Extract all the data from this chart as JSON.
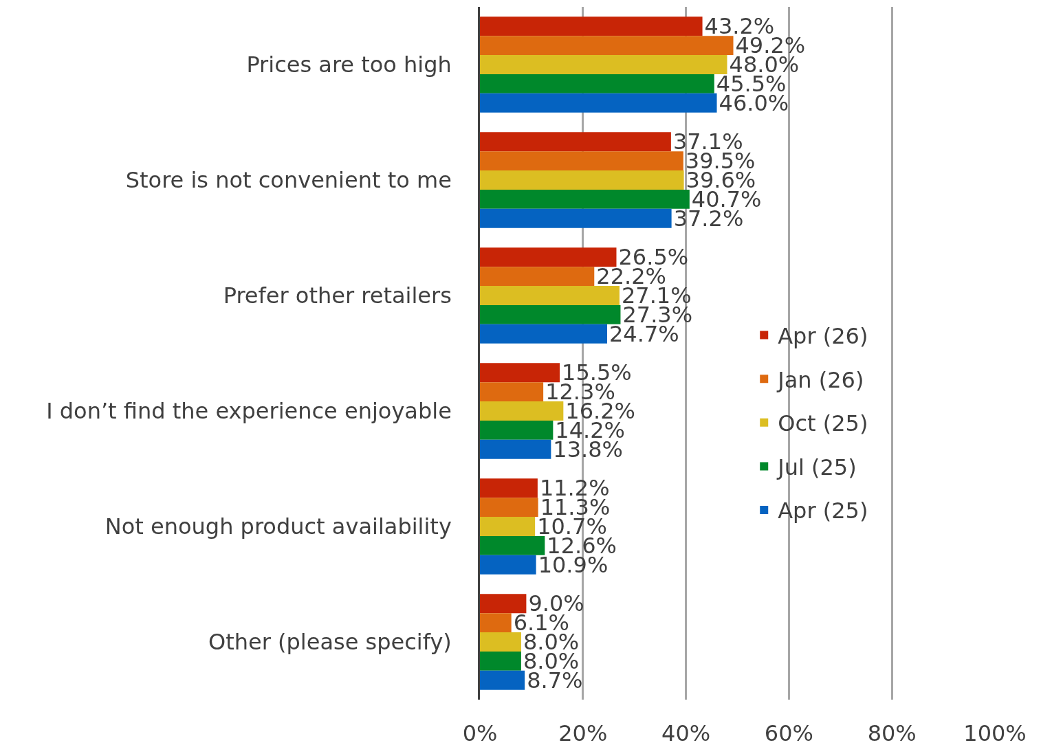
{
  "chart_data": {
    "type": "bar",
    "orientation": "horizontal",
    "categories": [
      "Prices are too high",
      "Store is not convenient to me",
      "Prefer other retailers",
      "I don’t find the experience enjoyable",
      "Not enough product availability",
      "Other (please specify)"
    ],
    "series": [
      {
        "name": "Apr (26)",
        "color": "#c82506",
        "values": [
          43.2,
          37.1,
          26.5,
          15.5,
          11.2,
          9.0
        ],
        "value_labels": [
          "43.2%",
          "37.1%",
          "26.5%",
          "15.5%",
          "11.2%",
          "9.0%"
        ]
      },
      {
        "name": "Jan (26)",
        "color": "#de6a10",
        "values": [
          49.2,
          39.5,
          22.2,
          12.3,
          11.3,
          6.1
        ],
        "value_labels": [
          "49.2%",
          "39.5%",
          "22.2%",
          "12.3%",
          "11.3%",
          "6.1%"
        ]
      },
      {
        "name": "Oct (25)",
        "color": "#dcbe22",
        "values": [
          48.0,
          39.6,
          27.1,
          16.2,
          10.7,
          8.0
        ],
        "value_labels": [
          "48.0%",
          "39.6%",
          "27.1%",
          "16.2%",
          "10.7%",
          "8.0%"
        ]
      },
      {
        "name": "Jul (25)",
        "color": "#00882b",
        "values": [
          45.5,
          40.7,
          27.3,
          14.2,
          12.6,
          8.0
        ],
        "value_labels": [
          "45.5%",
          "40.7%",
          "27.3%",
          "14.2%",
          "12.6%",
          "8.0%"
        ]
      },
      {
        "name": "Apr (25)",
        "color": "#0563c1",
        "values": [
          46.0,
          37.2,
          24.7,
          13.8,
          10.9,
          8.7
        ],
        "value_labels": [
          "46.0%",
          "37.2%",
          "24.7%",
          "13.8%",
          "10.9%",
          "8.7%"
        ]
      }
    ],
    "xlim": [
      0,
      100
    ],
    "xticks": [
      {
        "value": 0,
        "label": "0%"
      },
      {
        "value": 20,
        "label": "20%"
      },
      {
        "value": 40,
        "label": "40%"
      },
      {
        "value": 60,
        "label": "60%"
      },
      {
        "value": 80,
        "label": "80%"
      },
      {
        "value": 100,
        "label": "100%"
      }
    ],
    "grid": "x",
    "legend": "right"
  }
}
